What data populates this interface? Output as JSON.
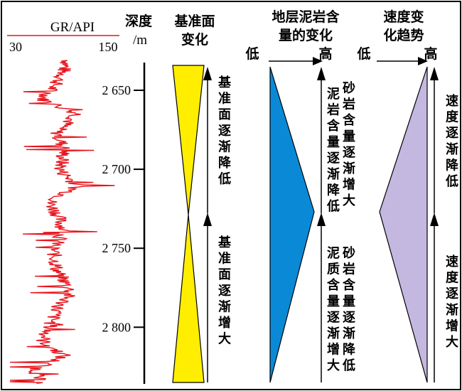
{
  "gr_header": {
    "curve_label": "GR/API",
    "scale_min": "30",
    "scale_max": "150"
  },
  "depth_header": {
    "label_line1": "深度",
    "label_line2": "/m"
  },
  "depth_ticks": [
    {
      "depth": 2650,
      "label": "2 650"
    },
    {
      "depth": 2700,
      "label": "2 700"
    },
    {
      "depth": 2750,
      "label": "2 750"
    },
    {
      "depth": 2800,
      "label": "2 800"
    }
  ],
  "base_level": {
    "header_line1": "基准面",
    "header_line2": "变化",
    "upper_text": "基准面逐渐降低",
    "lower_text": "基准面逐渐增大",
    "fill_color": "#ffee00"
  },
  "sand_content": {
    "header_line1": "地层泥岩含",
    "header_line2": "量的变化",
    "low_label": "低",
    "high_label": "高",
    "upper_text_col1": "泥岩含量逐渐降低",
    "upper_text_col2": "砂岩含量逐渐增大",
    "lower_text_col1": "泥质含量逐渐增大",
    "lower_text_col2": "砂岩含量逐渐降低",
    "fill_color": "#0a8ad6"
  },
  "velocity": {
    "header_line1": "速度变",
    "header_line2": "化趋势",
    "low_label": "低",
    "high_label": "高",
    "upper_text": "速度逐渐降低",
    "lower_text": "速度逐渐增大",
    "fill_color": "#c4b8e0"
  },
  "colors": {
    "gr_curve": "#e8141c",
    "gr_header_line": "#e8141c",
    "frame": "#000000"
  }
}
